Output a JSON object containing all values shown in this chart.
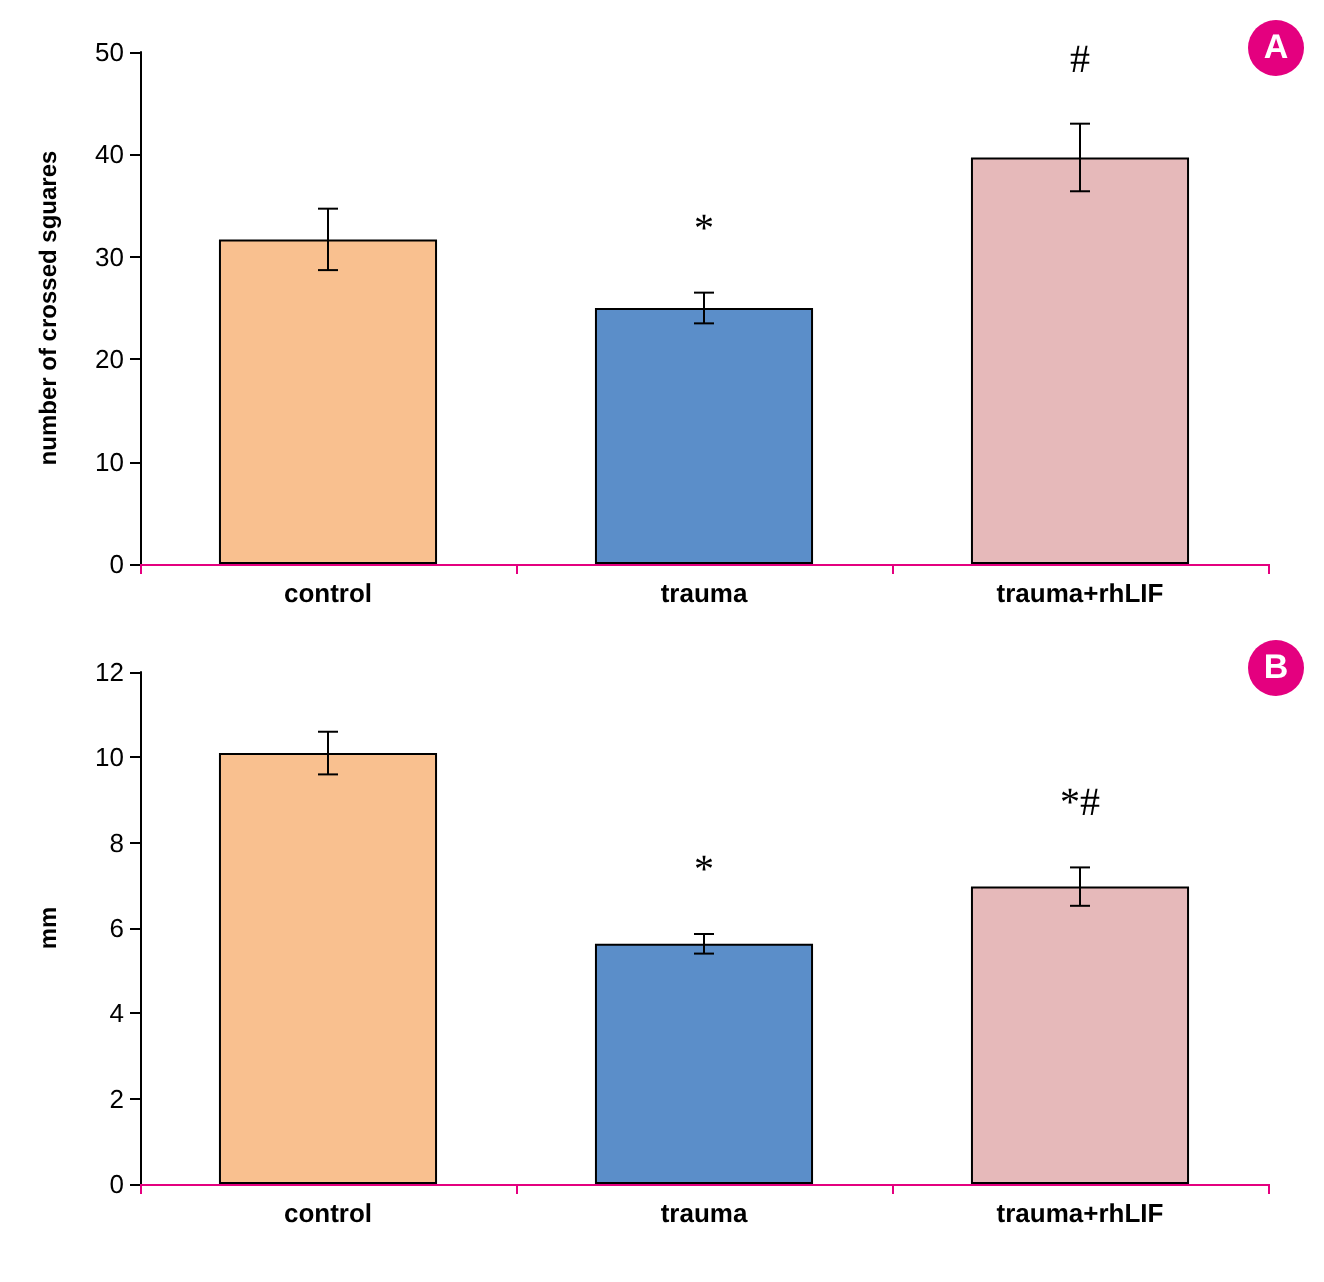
{
  "chart_data": [
    {
      "type": "bar",
      "ylabel": "number of crossed sguares",
      "categories": [
        "control",
        "trauma",
        "trauma+rhLIF"
      ],
      "values": [
        31.7,
        25.0,
        39.7
      ],
      "colors": [
        "#f9c08f",
        "#5b8ec9",
        "#e6b9ba"
      ],
      "errors": [
        3,
        1.5,
        3.3
      ],
      "ylim": [
        0,
        50
      ],
      "yticks": [
        0,
        10,
        20,
        30,
        40,
        50
      ],
      "grid": false,
      "annotations": [
        {
          "text": "*",
          "x": "trauma",
          "y": 26.5
        },
        {
          "text": "#",
          "x": "trauma+rhLIF",
          "y": 43
        },
        "A"
      ]
    },
    {
      "type": "bar",
      "ylabel": "mm",
      "categories": [
        "control",
        "trauma",
        "trauma+rhLIF"
      ],
      "values": [
        10.1,
        5.63,
        6.97
      ],
      "colors": [
        "#f9c08f",
        "#5b8ec9",
        "#e6b9ba"
      ],
      "errors": [
        0.5,
        0.23,
        0.45
      ],
      "ylim": [
        0,
        12
      ],
      "yticks": [
        0,
        2,
        4,
        6,
        8,
        10,
        12
      ],
      "grid": false,
      "annotations": [
        {
          "text": "*",
          "x": "trauma",
          "y": 5.86
        },
        {
          "text": "*#",
          "x": "trauma+rhLIF",
          "y": 7.42
        },
        "B"
      ]
    }
  ]
}
